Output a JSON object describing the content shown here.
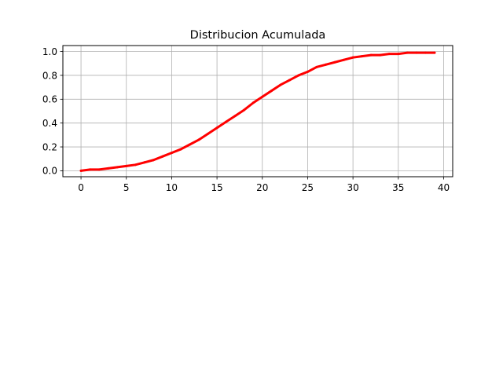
{
  "chart_data": {
    "type": "line",
    "title": "Distribucion Acumulada",
    "xlabel": "",
    "ylabel": "",
    "xlim": [
      -2,
      41
    ],
    "ylim": [
      -0.05,
      1.05
    ],
    "x_ticks": [
      0,
      5,
      10,
      15,
      20,
      25,
      30,
      35,
      40
    ],
    "y_ticks": [
      0.0,
      0.2,
      0.4,
      0.6,
      0.8,
      1.0
    ],
    "x_tick_labels": [
      "0",
      "5",
      "10",
      "15",
      "20",
      "25",
      "30",
      "35",
      "40"
    ],
    "y_tick_labels": [
      "0.0",
      "0.2",
      "0.4",
      "0.6",
      "0.8",
      "1.0"
    ],
    "grid": true,
    "series": [
      {
        "color": "#ff0000",
        "x": [
          0,
          1,
          2,
          3,
          4,
          5,
          6,
          7,
          8,
          9,
          10,
          11,
          12,
          13,
          14,
          15,
          16,
          17,
          18,
          19,
          20,
          21,
          22,
          23,
          24,
          25,
          26,
          27,
          28,
          29,
          30,
          31,
          32,
          33,
          34,
          35,
          36,
          37,
          38,
          39
        ],
        "y": [
          0.0,
          0.01,
          0.01,
          0.02,
          0.03,
          0.04,
          0.05,
          0.07,
          0.09,
          0.12,
          0.15,
          0.18,
          0.22,
          0.26,
          0.31,
          0.36,
          0.41,
          0.46,
          0.51,
          0.57,
          0.62,
          0.67,
          0.72,
          0.76,
          0.8,
          0.83,
          0.87,
          0.89,
          0.91,
          0.93,
          0.95,
          0.96,
          0.97,
          0.97,
          0.98,
          0.98,
          0.99,
          0.99,
          0.99,
          0.99
        ]
      }
    ]
  }
}
